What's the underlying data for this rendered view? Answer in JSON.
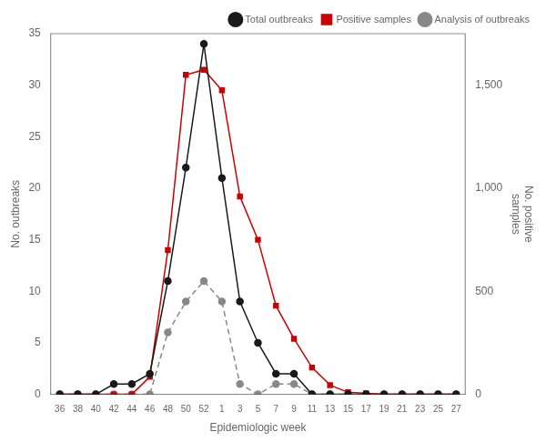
{
  "chart_data": {
    "type": "line",
    "xlabel": "Epidemiologic week",
    "ylabel": "No. outbreaks",
    "y2label": "No. positive\nsamples",
    "categories": [
      "36",
      "38",
      "40",
      "42",
      "44",
      "46",
      "48",
      "50",
      "52",
      "1",
      "3",
      "5",
      "7",
      "9",
      "11",
      "13",
      "15",
      "17",
      "19",
      "21",
      "23",
      "25",
      "27"
    ],
    "series": [
      {
        "name": "Total outbreaks",
        "color": "#1a1a1a",
        "marker": "circle",
        "line_style": "solid",
        "values": [
          0,
          0,
          0,
          1,
          1,
          2,
          11,
          22,
          34,
          21,
          9,
          5,
          2,
          2,
          0,
          0,
          0,
          0,
          0,
          0,
          0,
          0,
          0
        ]
      },
      {
        "name": "Positive samples",
        "color": "#cc0000",
        "marker": "square",
        "line_style": "solid",
        "axis": "y2",
        "values": [
          0,
          0,
          0,
          0,
          0,
          85,
          700,
          1550,
          1575,
          1475,
          960,
          750,
          430,
          270,
          130,
          45,
          10,
          5,
          0,
          0,
          0,
          0,
          0
        ]
      },
      {
        "name": "Analysis of outbreaks",
        "color": "#888888",
        "marker": "circle",
        "line_style": "dashed",
        "values": [
          0,
          0,
          0,
          0,
          0,
          0,
          6,
          9,
          11,
          9,
          1,
          0,
          1,
          1,
          0,
          0,
          0,
          0,
          0,
          0,
          0,
          0,
          0
        ]
      }
    ],
    "ylim": [
      0,
      35
    ],
    "yticks": [
      0,
      5,
      10,
      15,
      20,
      25,
      30,
      35
    ],
    "y2lim": [
      0,
      1750
    ],
    "y2ticks": [
      0,
      500,
      {
        "value": 1000,
        "label": "1,000"
      },
      {
        "value": 1500,
        "label": "1,500"
      }
    ],
    "grid": false,
    "legend": "upper right"
  }
}
